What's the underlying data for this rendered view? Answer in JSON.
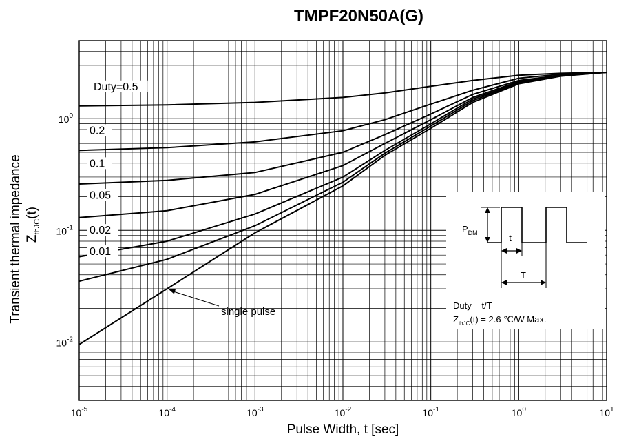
{
  "chart_data": {
    "type": "line",
    "title": "TMPF20N50A(G)",
    "xlabel": "Pulse Width, t [sec]",
    "ylabel_main": "Transient thermal impedance",
    "ylabel_sym": "Z",
    "ylabel_sub": "thJC",
    "ylabel_tail": "(t)",
    "x_scale": "log",
    "y_scale": "log",
    "xlim": [
      1e-05,
      10
    ],
    "ylim": [
      0.003,
      5
    ],
    "grid": true,
    "x_ticks": [
      {
        "base": "10",
        "exp": "-5",
        "value": 1e-05
      },
      {
        "base": "10",
        "exp": "-4",
        "value": 0.0001
      },
      {
        "base": "10",
        "exp": "-3",
        "value": 0.001
      },
      {
        "base": "10",
        "exp": "-2",
        "value": 0.01
      },
      {
        "base": "10",
        "exp": "-1",
        "value": 0.1
      },
      {
        "base": "10",
        "exp": "0",
        "value": 1
      },
      {
        "base": "10",
        "exp": "1",
        "value": 10
      }
    ],
    "y_ticks": [
      {
        "base": "10",
        "exp": "-2",
        "value": 0.01
      },
      {
        "base": "10",
        "exp": "-1",
        "value": 0.1
      },
      {
        "base": "10",
        "exp": "0",
        "value": 1
      }
    ],
    "series": [
      {
        "name": "Duty=0.5",
        "x": [
          1e-05,
          0.0001,
          0.001,
          0.01,
          0.03,
          0.1,
          0.3,
          1,
          3,
          10
        ],
        "y": [
          1.3,
          1.33,
          1.4,
          1.55,
          1.7,
          1.95,
          2.2,
          2.45,
          2.55,
          2.6
        ]
      },
      {
        "name": "0.2",
        "x": [
          1e-05,
          0.0001,
          0.001,
          0.01,
          0.03,
          0.1,
          0.3,
          1,
          3,
          10
        ],
        "y": [
          0.52,
          0.55,
          0.62,
          0.78,
          0.98,
          1.35,
          1.8,
          2.3,
          2.5,
          2.6
        ]
      },
      {
        "name": "0.1",
        "x": [
          1e-05,
          0.0001,
          0.001,
          0.01,
          0.03,
          0.1,
          0.3,
          1,
          3,
          10
        ],
        "y": [
          0.26,
          0.28,
          0.33,
          0.5,
          0.72,
          1.1,
          1.65,
          2.2,
          2.45,
          2.6
        ]
      },
      {
        "name": "0.05",
        "x": [
          1e-05,
          0.0001,
          0.001,
          0.01,
          0.03,
          0.1,
          0.3,
          1,
          3,
          10
        ],
        "y": [
          0.13,
          0.15,
          0.21,
          0.38,
          0.6,
          0.98,
          1.55,
          2.15,
          2.45,
          2.6
        ]
      },
      {
        "name": "0.02",
        "x": [
          1e-05,
          0.0001,
          0.001,
          0.01,
          0.03,
          0.1,
          0.3,
          1,
          3,
          10
        ],
        "y": [
          0.058,
          0.08,
          0.14,
          0.3,
          0.52,
          0.9,
          1.5,
          2.1,
          2.42,
          2.6
        ]
      },
      {
        "name": "0.01",
        "x": [
          1e-05,
          0.0001,
          0.001,
          0.01,
          0.03,
          0.1,
          0.3,
          1,
          3,
          10
        ],
        "y": [
          0.035,
          0.055,
          0.11,
          0.27,
          0.49,
          0.86,
          1.45,
          2.08,
          2.42,
          2.6
        ]
      },
      {
        "name": "single pulse",
        "x": [
          1e-05,
          0.0001,
          0.001,
          0.01,
          0.03,
          0.1,
          0.3,
          1,
          3,
          10
        ],
        "y": [
          0.0095,
          0.03,
          0.095,
          0.25,
          0.47,
          0.82,
          1.4,
          2.05,
          2.4,
          2.6
        ]
      }
    ],
    "curve_labels": [
      {
        "series": 0,
        "text": "Duty=0.5"
      },
      {
        "series": 1,
        "text": "0.2"
      },
      {
        "series": 2,
        "text": "0.1"
      },
      {
        "series": 3,
        "text": "0.05"
      },
      {
        "series": 4,
        "text": "0.02"
      },
      {
        "series": 5,
        "text": "0.01"
      }
    ],
    "annotation": {
      "text": "single pulse",
      "target_x": 0.0001,
      "target_y": 0.03
    },
    "inset": {
      "pdm_sym": "P",
      "pdm_sub": "DM",
      "t_label": "t",
      "T_label": "T",
      "duty_text": "Duty = t/T",
      "z_sym": "Z",
      "z_sub": "thJC",
      "z_text": "(t) = 2.6 ℃/W Max."
    }
  }
}
